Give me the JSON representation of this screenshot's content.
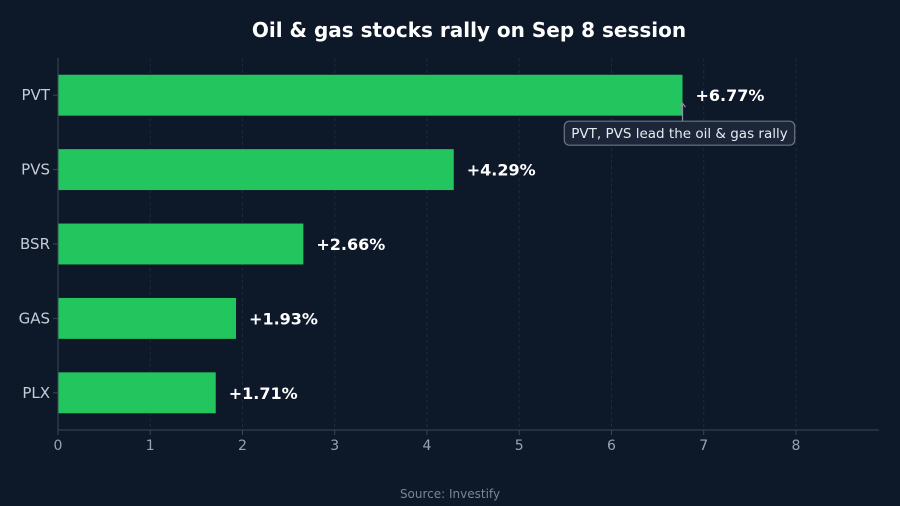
{
  "chart_data": {
    "type": "bar",
    "orientation": "horizontal",
    "title": "Oil & gas stocks rally on Sep 8 session",
    "categories": [
      "PVT",
      "PVS",
      "BSR",
      "GAS",
      "PLX"
    ],
    "values": [
      6.77,
      4.29,
      2.66,
      1.93,
      1.71
    ],
    "value_labels": [
      "+6.77%",
      "+4.29%",
      "+2.66%",
      "+1.93%",
      "+1.71%"
    ],
    "xlim": [
      0,
      8.9
    ],
    "xticks": [
      "0",
      "1",
      "2",
      "3",
      "4",
      "5",
      "6",
      "7",
      "8"
    ],
    "xlabel": "",
    "ylabel": "",
    "grid": "vertical",
    "legend": "none",
    "annotation": {
      "text": "PVT, PVS lead the oil & gas rally",
      "target_category": "PVT"
    },
    "source": "Source: Investify",
    "colors": {
      "background": "#0d1829",
      "bar": "#22c55e",
      "grid": "#1f2b3d",
      "axis": "#3a4657"
    }
  }
}
